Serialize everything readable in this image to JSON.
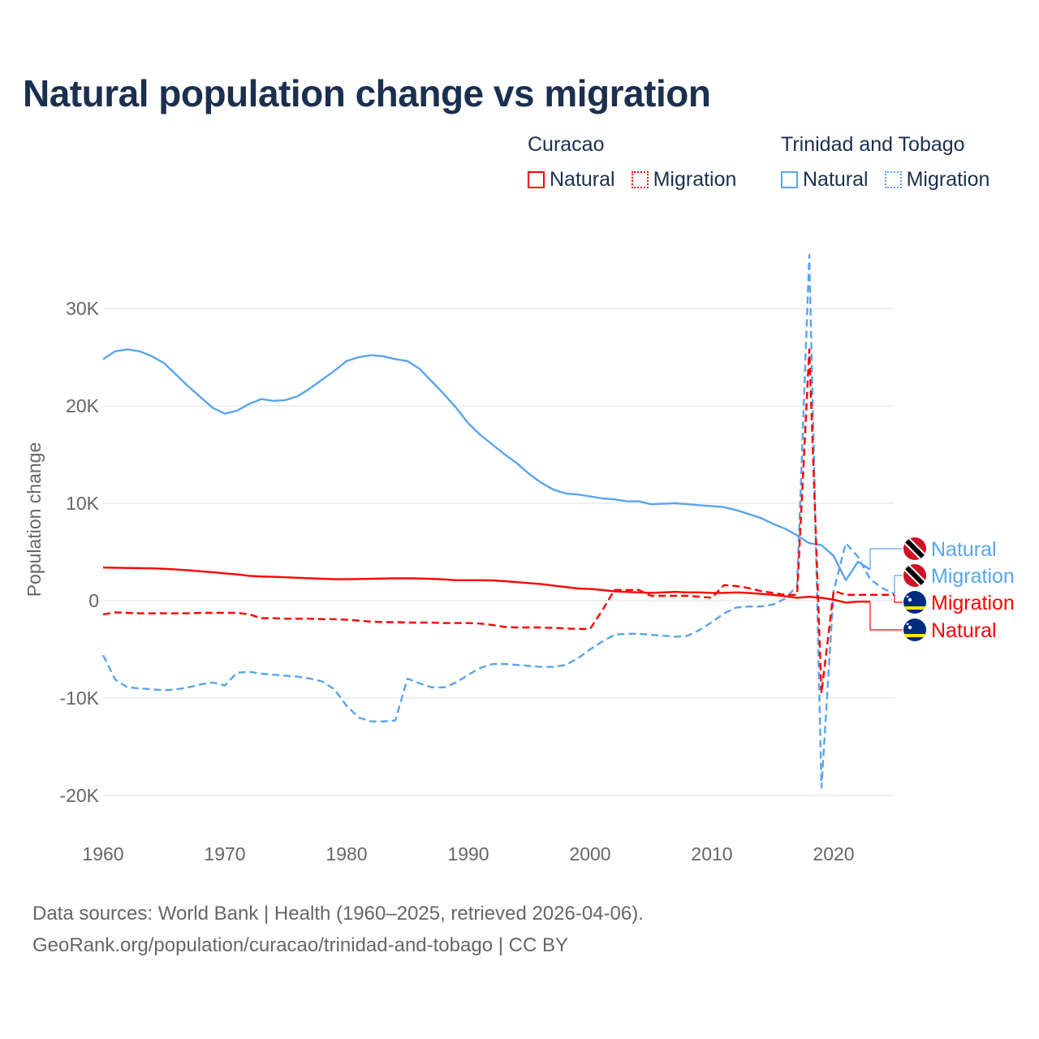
{
  "title": "Natural population change vs migration",
  "legend": [
    {
      "group": "Curacao",
      "items": [
        {
          "label": "Natural",
          "style": "solid",
          "color": "#ff0000"
        },
        {
          "label": "Migration",
          "style": "dotted",
          "color": "#ff0000"
        }
      ]
    },
    {
      "group": "Trinidad and Tobago",
      "items": [
        {
          "label": "Natural",
          "style": "solid",
          "color": "#5aa5ec"
        },
        {
          "label": "Migration",
          "style": "dotted",
          "color": "#5aa5ec"
        }
      ]
    }
  ],
  "footer": {
    "line1": "Data sources: World Bank | Health (1960–2025, retrieved 2026-04-06).",
    "line2": "GeoRank.org/population/curacao/trinidad-and-tobago | CC BY"
  },
  "chart_data": {
    "type": "line",
    "title": "Natural population change vs migration",
    "xlabel": "",
    "ylabel": "Population change",
    "xlim": [
      1960,
      2025
    ],
    "ylim": [
      -20000,
      35000
    ],
    "x_ticks": [
      "1960",
      "1970",
      "1980",
      "1990",
      "2000",
      "2010",
      "2020"
    ],
    "y_ticks": [
      {
        "v": 30000,
        "label": "30K"
      },
      {
        "v": 20000,
        "label": "20K"
      },
      {
        "v": 10000,
        "label": "10K"
      },
      {
        "v": 0,
        "label": "0"
      },
      {
        "v": -10000,
        "label": "-10K"
      },
      {
        "v": -20000,
        "label": "-20K"
      }
    ],
    "grid": true,
    "legend_placement": "top-right",
    "start_year": 1960,
    "series": [
      {
        "name": "Trinidad and Tobago Natural",
        "label": "Natural",
        "color": "#5aa5ec",
        "dash": false,
        "flag": "trinidad-and-tobago",
        "values": [
          24800,
          25600,
          25800,
          25600,
          25100,
          24400,
          23200,
          22000,
          20900,
          19800,
          19200,
          19500,
          20200,
          20700,
          20500,
          20600,
          21000,
          21800,
          22700,
          23600,
          24600,
          25000,
          25200,
          25100,
          24800,
          24600,
          23800,
          22500,
          21200,
          19800,
          18200,
          17000,
          16000,
          15000,
          14100,
          13000,
          12100,
          11400,
          11000,
          10900,
          10700,
          10500,
          10400,
          10200,
          10200,
          9900,
          9950,
          10000,
          9900,
          9800,
          9700,
          9600,
          9300,
          8900,
          8500,
          7900,
          7400,
          6700,
          5900,
          5700,
          4600,
          2100,
          4000,
          3200
        ]
      },
      {
        "name": "Trinidad and Tobago Migration",
        "label": "Migration",
        "color": "#5aa5ec",
        "dash": true,
        "flag": "trinidad-and-tobago",
        "values": [
          -5600,
          -8100,
          -8900,
          -9000,
          -9100,
          -9200,
          -9100,
          -8900,
          -8600,
          -8400,
          -8700,
          -7400,
          -7300,
          -7500,
          -7600,
          -7700,
          -7800,
          -8000,
          -8300,
          -9100,
          -10800,
          -12000,
          -12400,
          -12400,
          -12300,
          -8000,
          -8500,
          -8900,
          -8900,
          -8400,
          -7600,
          -6900,
          -6500,
          -6500,
          -6600,
          -6700,
          -6800,
          -6800,
          -6600,
          -5900,
          -5000,
          -4200,
          -3500,
          -3400,
          -3400,
          -3500,
          -3600,
          -3700,
          -3600,
          -3000,
          -2200,
          -1300,
          -700,
          -600,
          -600,
          -400,
          200,
          1500,
          35500,
          -19200,
          1000,
          5900,
          4500,
          2200,
          1300,
          700
        ]
      },
      {
        "name": "Curacao Migration",
        "label": "Migration",
        "color": "#ff0000",
        "dash": true,
        "flag": "curacao",
        "values": [
          -1400,
          -1200,
          -1250,
          -1300,
          -1300,
          -1300,
          -1300,
          -1300,
          -1250,
          -1250,
          -1250,
          -1250,
          -1400,
          -1800,
          -1800,
          -1850,
          -1850,
          -1850,
          -1900,
          -1900,
          -1950,
          -2050,
          -2150,
          -2200,
          -2200,
          -2250,
          -2250,
          -2250,
          -2300,
          -2300,
          -2300,
          -2350,
          -2500,
          -2700,
          -2750,
          -2750,
          -2750,
          -2800,
          -2850,
          -2900,
          -2900,
          -1000,
          1100,
          1100,
          1100,
          500,
          500,
          500,
          500,
          400,
          300,
          1600,
          1500,
          1300,
          1000,
          800,
          600,
          600,
          25800,
          -9500,
          1000,
          600,
          600,
          600,
          600,
          600
        ]
      },
      {
        "name": "Curacao Natural",
        "label": "Natural",
        "color": "#ff0000",
        "dash": false,
        "flag": "curacao",
        "values": [
          3400,
          3380,
          3360,
          3340,
          3320,
          3280,
          3200,
          3120,
          3020,
          2920,
          2800,
          2700,
          2550,
          2480,
          2450,
          2400,
          2350,
          2300,
          2250,
          2200,
          2200,
          2220,
          2250,
          2280,
          2300,
          2300,
          2280,
          2240,
          2180,
          2100,
          2100,
          2100,
          2080,
          2000,
          1900,
          1800,
          1700,
          1550,
          1400,
          1250,
          1200,
          1100,
          950,
          900,
          850,
          800,
          850,
          900,
          850,
          850,
          800,
          800,
          850,
          800,
          700,
          600,
          450,
          300,
          400,
          300,
          100,
          -200,
          -100,
          -100
        ]
      }
    ]
  }
}
